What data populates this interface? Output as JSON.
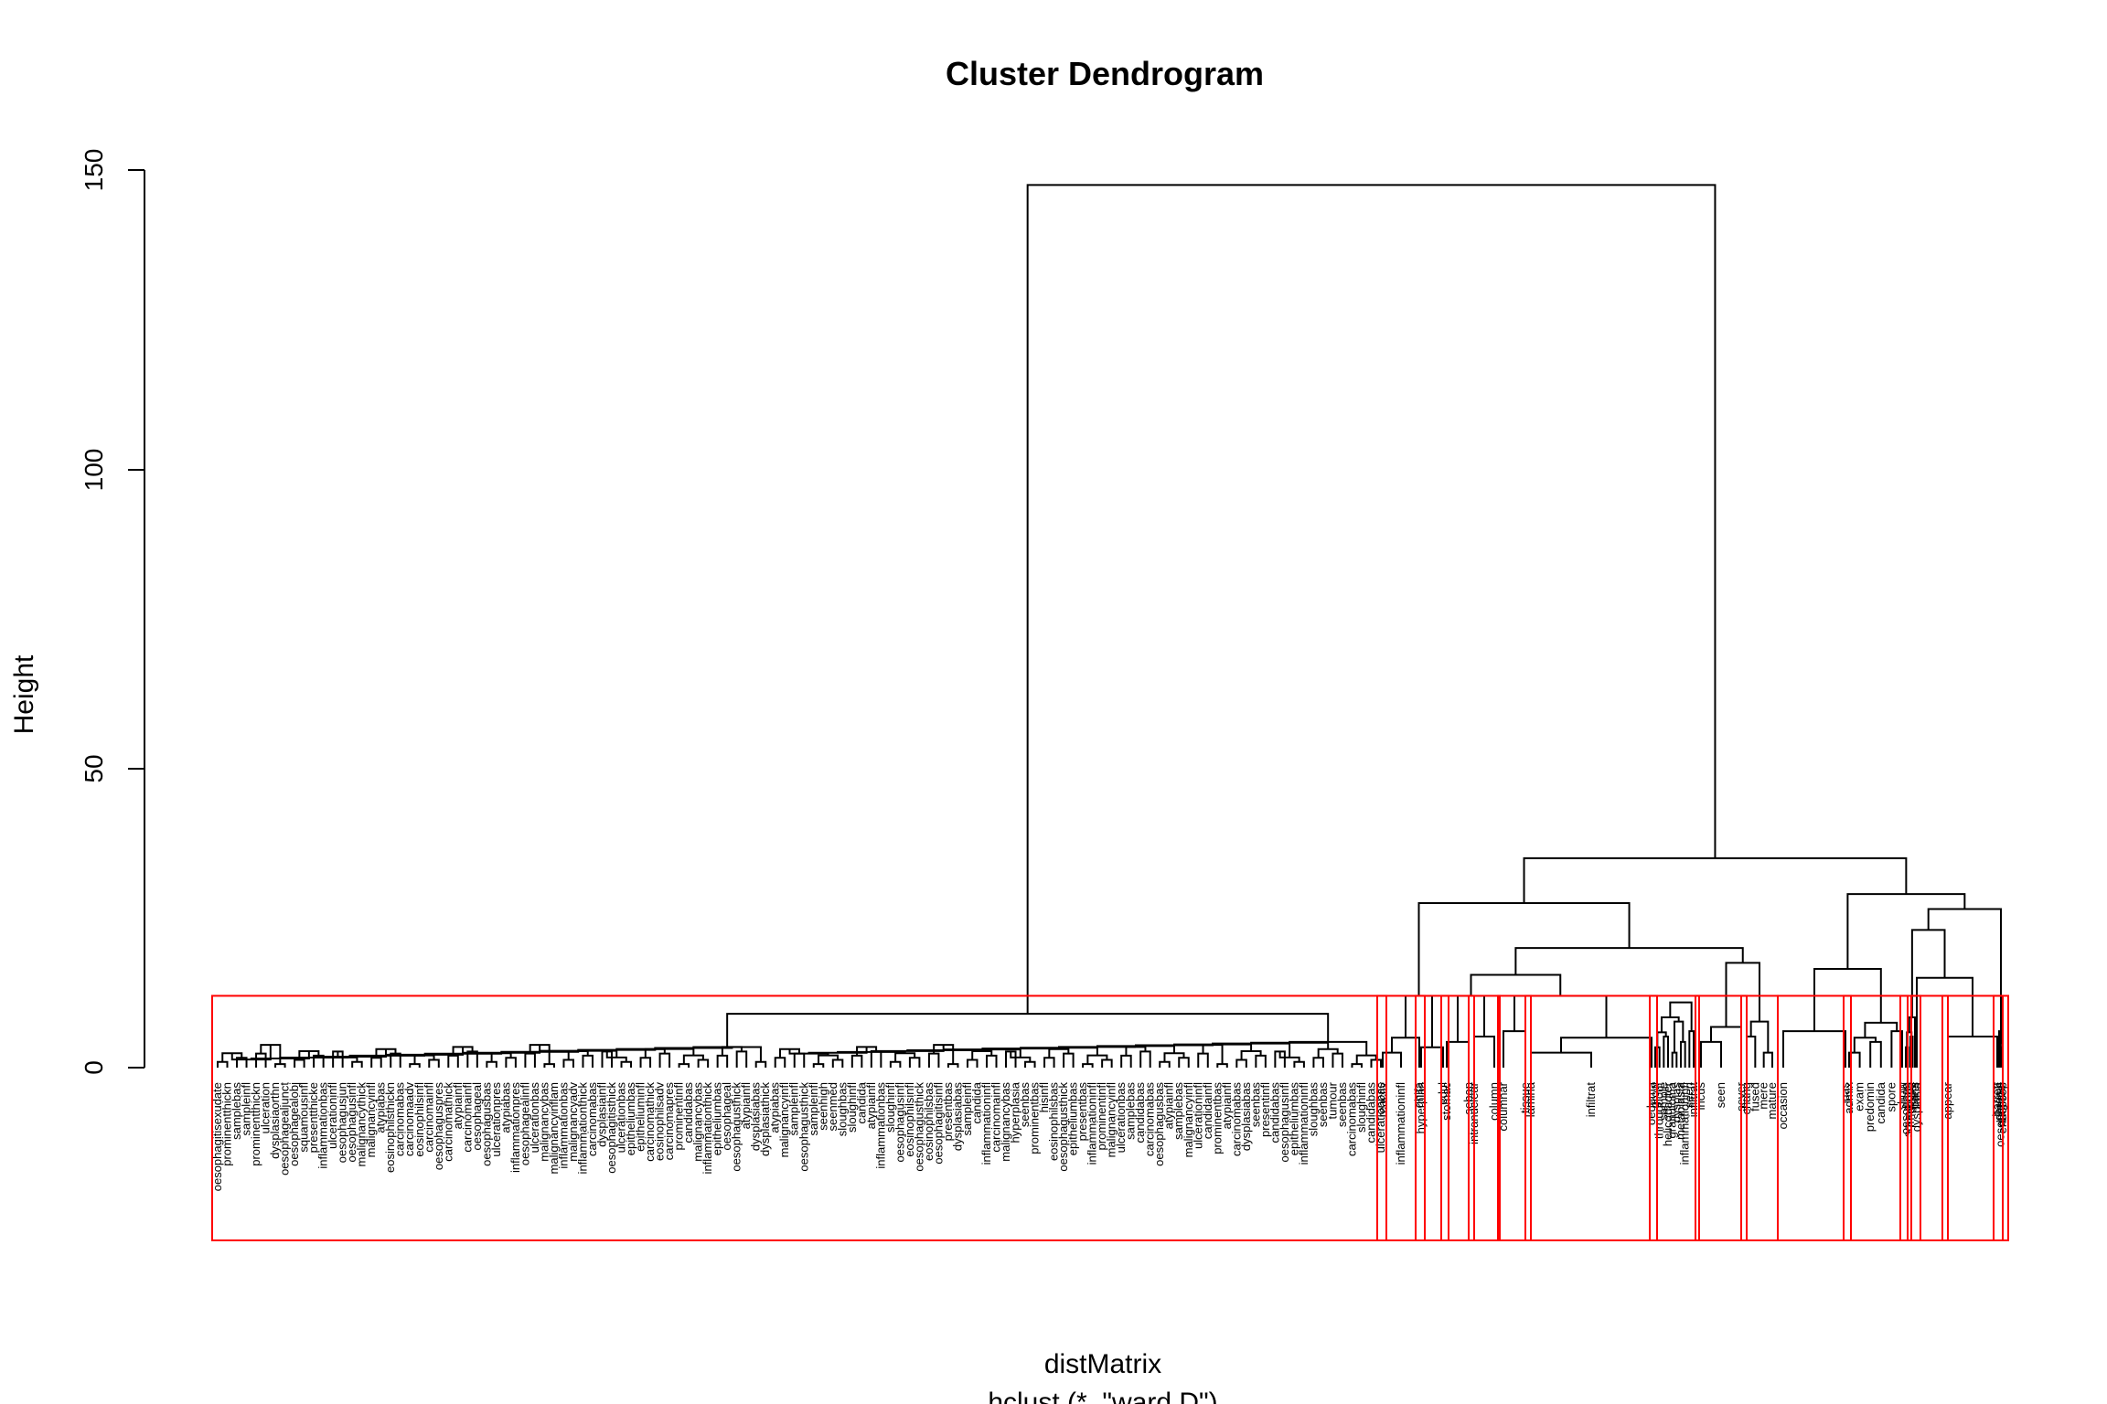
{
  "chart_data": {
    "type": "dendrogram",
    "title": "Cluster Dendrogram",
    "xlabel": "distMatrix",
    "sub": "hclust (*, \"ward.D\")",
    "ylabel": "Height",
    "ylim": [
      0,
      150
    ],
    "yticks": [
      "0",
      "50",
      "100",
      "150"
    ],
    "cut_height": 12,
    "box_color": "#ff0000",
    "line_color": "#000000",
    "main_cluster_labels": [
      "oesophagitisexudate",
      "prominentthickn",
      "samplebas",
      "sampleinfl",
      "prominentthickn",
      "ulceration",
      "dysplasiaorthn",
      "oesophagealjunct",
      "oesophagealobj",
      "squamousinfl",
      "presentthicke",
      "inflammationbas",
      "ulcerationinfl",
      "oesophagusjun",
      "oesophagusinfl",
      "malignancythick",
      "malignancyinfl",
      "atypiabas",
      "eosinophilsthickn",
      "carcinomabas",
      "carcinomaadv",
      "eosinophilsinfl",
      "carcinomainfl",
      "oesophaguspres",
      "carcinomathick",
      "atypiainfl",
      "carcinomainfl",
      "oesophageal",
      "oesophagusbas",
      "ulcerationpres",
      "atypiabas",
      "inflammationpres",
      "oesophagealinfl",
      "ulcerationbas",
      "malignancybas",
      "malignancyinflam",
      "inflammationbas",
      "malignancyadv",
      "inflammationthick",
      "carcinomabas",
      "dysplasiainfl",
      "oesophagitisthick",
      "ulcerationbas",
      "epitheliumbas",
      "epitheliuminfl",
      "carcinomathick",
      "eosinophilsadv",
      "carcinomapres",
      "prominentinfl",
      "candidabas",
      "malignancybas",
      "inflammationthick",
      "epitheliumbas",
      "oesophageal",
      "oesophagusthick",
      "atypiainfl",
      "dysplasiabas",
      "dysplasiathick",
      "atypiabas",
      "malignancyinfl",
      "sampleinfl",
      "oesophagusthick",
      "sampleinfl",
      "seenhigh",
      "seenmed",
      "sloughbas",
      "sloughinfl",
      "candida",
      "atypiainfl",
      "inflammationbas",
      "sloughinfl",
      "oesophagusinfl",
      "eosinophilsinfl",
      "oesophagusthick",
      "eosinophilsbas",
      "oesophagitisinfl",
      "presentbas",
      "dysplasiabas",
      "sampleinfl",
      "candida",
      "inflammationinfl",
      "carcinomainfl",
      "malignancybas",
      "hyperplasia",
      "seenbas",
      "prominentbas",
      "hisinfl",
      "eosinophilsbas",
      "oesophagusthick",
      "epitheliumbas",
      "presentbas",
      "inflammationinfl",
      "prominentinfl",
      "malignancyinfl",
      "ulcerationbas",
      "samplebas",
      "candidabas",
      "carcinomabas",
      "oesophagusbas",
      "atypiainfl",
      "samplebas",
      "malignancyinfl",
      "ulcerationinfl",
      "candidainfl",
      "prominentbas",
      "atypiainfl",
      "carcinomabas",
      "dysplasiabas",
      "seenbas",
      "presentinfl",
      "candidabas",
      "oesophagusinfl",
      "epitheliumbas",
      "inflammationinfl",
      "sloughbas",
      "seenbas",
      "tumour",
      "seenbas",
      "carcinomabas",
      "sloughinfl",
      "candidabas",
      "ulcerationbas"
    ],
    "cluster_labels": [
      [
        "reactiv",
        "inflammationinfl",
        "ghifa"
      ],
      [
        "hyperplas",
        "edul"
      ],
      [
        "stomac",
        "sebap"
      ],
      [
        "intranuclear",
        "column"
      ],
      [
        "columnar",
        "tissue"
      ],
      [
        "lamina",
        "infiltrat",
        "oedema"
      ],
      [
        "grow",
        "throughout",
        "sample",
        "helicobacter",
        "granuloma",
        "dysplas",
        "metaplasia",
        "inflammationinfl",
        "seen",
        "infiltrat"
      ],
      [
        "incus",
        "seen",
        "sever"
      ],
      [
        "chang",
        "fused",
        "mere",
        "mature"
      ],
      [
        "occasion",
        "pas"
      ],
      [
        "admix",
        "exam",
        "predomin",
        "candida",
        "spore",
        "show"
      ],
      [
        "oesophag",
        "squamous",
        "mucosa",
        "biopsi",
        "parts"
      ],
      [
        "dysplasia"
      ],
      [
        "appear",
        "barrett"
      ],
      [
        "chronic",
        "oesophagus",
        "diagnosi",
        "endoscop"
      ]
    ]
  }
}
